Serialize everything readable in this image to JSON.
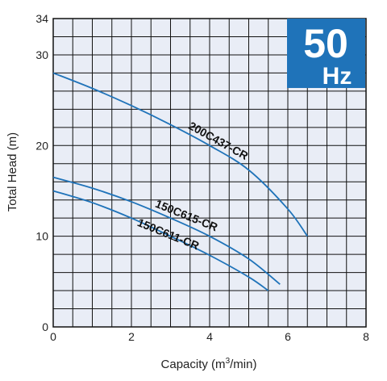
{
  "chart_data": {
    "type": "line",
    "title": "",
    "xlabel": "Capacity (m³/min)",
    "xlabel_main": "Capacity (m",
    "xlabel_sup": "3",
    "xlabel_tail": "/min)",
    "ylabel": "Total Head (m)",
    "xlim": [
      0,
      8
    ],
    "ylim": [
      0,
      34
    ],
    "x_ticks": [
      "0",
      "2",
      "4",
      "6",
      "8"
    ],
    "y_ticks": [
      "0",
      "10",
      "20",
      "30",
      "34"
    ],
    "grid": true,
    "badge": {
      "value": "50",
      "unit": "Hz",
      "color": "#1f73b9"
    },
    "plot_background": "#e9edf6",
    "line_color": "#1f73b9",
    "series": [
      {
        "name": "200C437-CR",
        "x": [
          0,
          1,
          2,
          3,
          4,
          5,
          6,
          6.5
        ],
        "y": [
          28.0,
          26.3,
          24.4,
          22.3,
          20.0,
          17.3,
          13.0,
          10.0
        ]
      },
      {
        "name": "150C615-CR",
        "x": [
          0,
          1,
          2,
          3,
          4,
          5,
          5.8
        ],
        "y": [
          16.5,
          15.3,
          13.8,
          12.0,
          10.0,
          7.5,
          4.7
        ]
      },
      {
        "name": "150C611-CR",
        "x": [
          0,
          1,
          2,
          3,
          4,
          5,
          5.5
        ],
        "y": [
          15.0,
          13.7,
          12.0,
          10.0,
          7.9,
          5.5,
          4.0
        ]
      }
    ]
  }
}
